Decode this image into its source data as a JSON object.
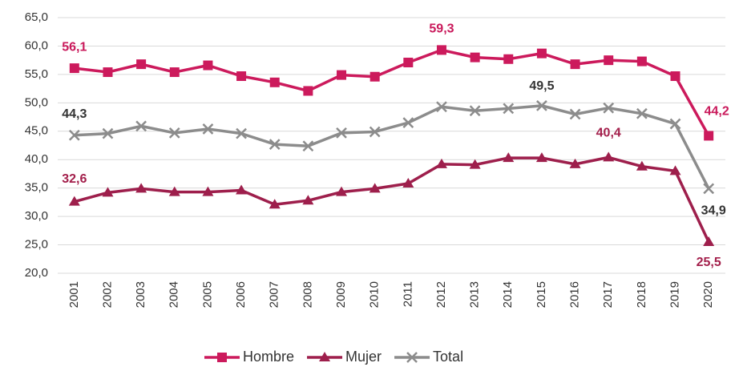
{
  "chart_data": {
    "type": "line",
    "categories": [
      "2001",
      "2002",
      "2003",
      "2004",
      "2005",
      "2006",
      "2007",
      "2008",
      "2009",
      "2010",
      "2011",
      "2012",
      "2013",
      "2014",
      "2015",
      "2016",
      "2017",
      "2018",
      "2019",
      "2020"
    ],
    "series": [
      {
        "name": "Hombre",
        "color": "#cc1a5c",
        "marker": "square",
        "values": [
          56.1,
          55.4,
          56.8,
          55.4,
          56.6,
          54.7,
          53.6,
          52.1,
          54.9,
          54.6,
          57.1,
          59.3,
          58.0,
          57.7,
          58.7,
          56.8,
          57.5,
          57.3,
          54.7,
          44.2
        ],
        "value_labels": [
          "56,1",
          null,
          null,
          null,
          null,
          null,
          null,
          null,
          null,
          null,
          null,
          "59,3",
          null,
          null,
          null,
          null,
          null,
          null,
          null,
          "44,2"
        ]
      },
      {
        "name": "Mujer",
        "color": "#9e1f4c",
        "marker": "triangle",
        "values": [
          32.6,
          34.2,
          34.9,
          34.3,
          34.3,
          34.6,
          32.1,
          32.8,
          34.3,
          34.9,
          35.8,
          39.2,
          39.1,
          40.3,
          40.3,
          39.2,
          40.4,
          38.8,
          38.0,
          25.5
        ],
        "value_labels": [
          "32,6",
          null,
          null,
          null,
          null,
          null,
          null,
          null,
          null,
          null,
          null,
          null,
          null,
          null,
          null,
          null,
          "40,4",
          null,
          null,
          "25,5"
        ]
      },
      {
        "name": "Total",
        "color": "#8c8c8c",
        "marker": "x",
        "values": [
          44.3,
          44.6,
          45.9,
          44.7,
          45.4,
          44.6,
          42.7,
          42.4,
          44.7,
          44.9,
          46.5,
          49.3,
          48.6,
          49.0,
          49.5,
          48.0,
          49.1,
          48.1,
          46.3,
          34.9
        ],
        "value_labels": [
          "44,3",
          null,
          null,
          null,
          null,
          null,
          null,
          null,
          null,
          null,
          null,
          null,
          null,
          null,
          "49,5",
          null,
          null,
          null,
          null,
          "34,9"
        ]
      }
    ],
    "ylim": [
      20,
      65
    ],
    "yticks": [
      {
        "value": 20,
        "label": "20,0"
      },
      {
        "value": 25,
        "label": "25,0"
      },
      {
        "value": 30,
        "label": "30,0"
      },
      {
        "value": 35,
        "label": "35,0"
      },
      {
        "value": 40,
        "label": "40,0"
      },
      {
        "value": 45,
        "label": "45,0"
      },
      {
        "value": 50,
        "label": "50,0"
      },
      {
        "value": 55,
        "label": "55,0"
      },
      {
        "value": 60,
        "label": "60,0"
      },
      {
        "value": 65,
        "label": "65,0"
      }
    ],
    "grid": true,
    "legend": "bottom"
  }
}
